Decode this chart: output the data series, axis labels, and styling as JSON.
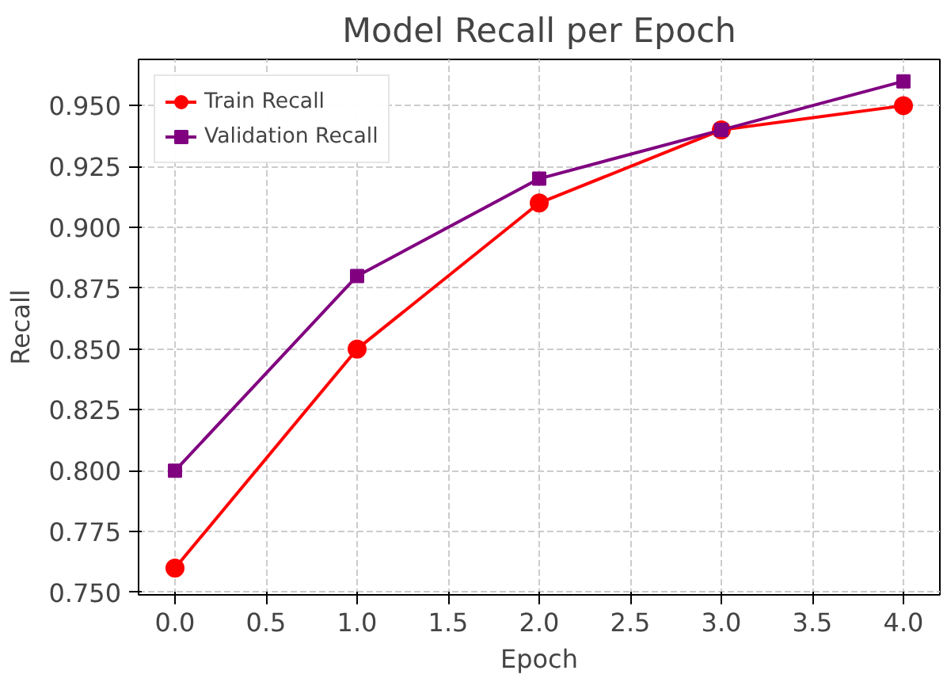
{
  "chart_data": {
    "type": "line",
    "title": "Model Recall per Epoch",
    "xlabel": "Epoch",
    "ylabel": "Recall",
    "x": [
      0,
      1,
      2,
      3,
      4
    ],
    "series": [
      {
        "name": "Train Recall",
        "color": "#ff0000",
        "marker": "circle",
        "values": [
          0.76,
          0.85,
          0.91,
          0.94,
          0.95
        ]
      },
      {
        "name": "Validation Recall",
        "color": "#800080",
        "marker": "square",
        "values": [
          0.8,
          0.88,
          0.92,
          0.94,
          0.96
        ]
      }
    ],
    "xlim": [
      -0.2,
      4.2
    ],
    "ylim": [
      0.749,
      0.969
    ],
    "xticks": [
      {
        "value": 0,
        "label": "0.0"
      },
      0.5,
      {
        "value": 1,
        "label": "1.0"
      },
      1.5,
      {
        "value": 2,
        "label": "2.0"
      },
      2.5,
      {
        "value": 3,
        "label": "3.0"
      },
      3.5,
      {
        "value": 4,
        "label": "4.0"
      }
    ],
    "yticks": [
      {
        "value": 0.75,
        "label": "0.750"
      },
      {
        "value": 0.775,
        "label": "0.775"
      },
      {
        "value": 0.8,
        "label": "0.800"
      },
      {
        "value": 0.825,
        "label": "0.825"
      },
      {
        "value": 0.85,
        "label": "0.850"
      },
      {
        "value": 0.875,
        "label": "0.875"
      },
      {
        "value": 0.9,
        "label": "0.900"
      },
      {
        "value": 0.925,
        "label": "0.925"
      },
      {
        "value": 0.95,
        "label": "0.950"
      }
    ],
    "grid": true,
    "legend": "top left",
    "line_style": "solid"
  }
}
